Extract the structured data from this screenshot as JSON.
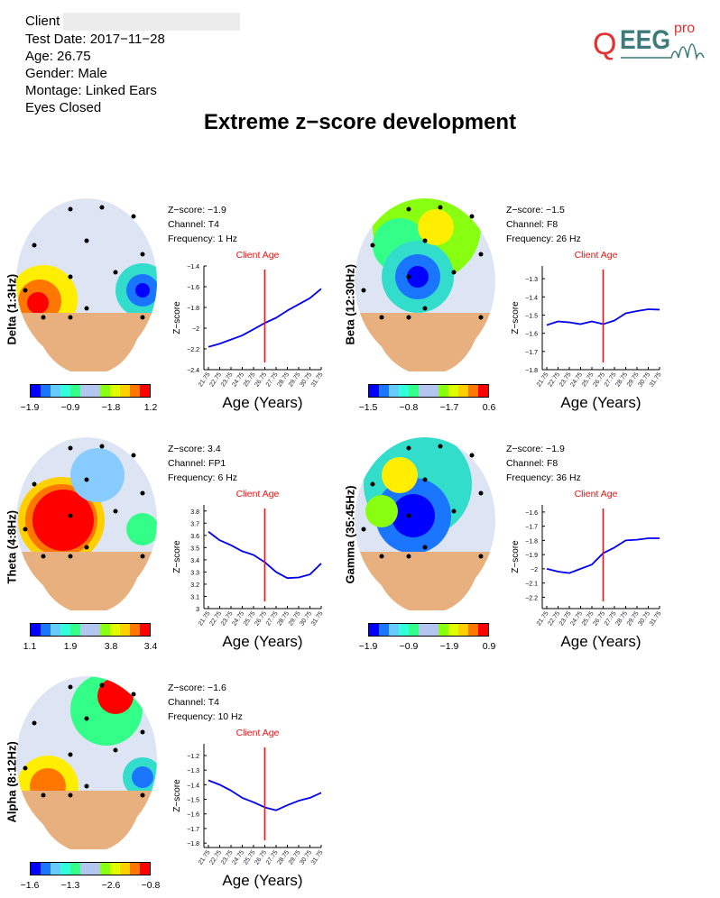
{
  "header": {
    "client_label": "Client",
    "test_date": "Test Date: 2017−11−28",
    "age": "Age: 26.75",
    "gender": "Gender: Male",
    "montage": "Montage: Linked Ears",
    "condition": "Eyes Closed"
  },
  "logo": {
    "text": "EEG",
    "sup": "pro",
    "q": "Q",
    "colors": {
      "main": "#3d7a7a",
      "accent": "#e53030"
    }
  },
  "title": "Extreme z−score development",
  "colorbar_colors": [
    "#0000ff",
    "#1a75ff",
    "#66ccff",
    "#33ffdd",
    "#33ff88",
    "#b3c6f0",
    "#b3c6f0",
    "#88ff11",
    "#ddff00",
    "#ffd000",
    "#ff7700",
    "#ff0000"
  ],
  "chart_data": [
    {
      "type": "line",
      "band": "Delta (1:3Hz)",
      "zscore": "Z−score: −1.9",
      "channel": "Channel: T4",
      "frequency": "Frequency: 1 Hz",
      "annotation": "Client Age",
      "client_age": 26.75,
      "xlabel": "Age (Years)",
      "ylabel": "Z−score",
      "x": [
        21.75,
        22.75,
        23.75,
        24.75,
        25.75,
        26.75,
        27.75,
        28.75,
        29.75,
        30.75,
        31.75
      ],
      "values": [
        -2.18,
        -2.15,
        -2.11,
        -2.07,
        -2.01,
        -1.95,
        -1.9,
        -1.83,
        -1.77,
        -1.71,
        -1.62
      ],
      "ylim": [
        -2.4,
        -1.4
      ],
      "yticks": [
        -2.4,
        -2.2,
        -2,
        -1.8,
        -1.6,
        -1.4
      ],
      "colorbar_labels": [
        "−1.9",
        "−0.9",
        "−1.8",
        "1.2"
      ],
      "line_color": "#0000ee",
      "marker_color": "#ee1111"
    },
    {
      "type": "line",
      "band": "Beta (12:30Hz)",
      "zscore": "Z−score: −1.5",
      "channel": "Channel: F8",
      "frequency": "Frequency: 26 Hz",
      "annotation": "Client Age",
      "client_age": 26.75,
      "xlabel": "Age (Years)",
      "ylabel": "Z−score",
      "x": [
        21.75,
        22.75,
        23.75,
        24.75,
        25.75,
        26.75,
        27.75,
        28.75,
        29.75,
        30.75,
        31.75
      ],
      "values": [
        -1.555,
        -1.535,
        -1.54,
        -1.55,
        -1.535,
        -1.55,
        -1.53,
        -1.49,
        -1.478,
        -1.468,
        -1.47
      ],
      "ylim": [
        -1.8,
        -1.23
      ],
      "yticks": [
        -1.8,
        -1.7,
        -1.6,
        -1.5,
        -1.4,
        -1.3
      ],
      "colorbar_labels": [
        "−1.5",
        "−0.8",
        "−1.7",
        "0.6"
      ],
      "line_color": "#0000ee",
      "marker_color": "#ee1111"
    },
    {
      "type": "line",
      "band": "Theta (4:8Hz)",
      "zscore": "Z−score: 3.4",
      "channel": "Channel: FP1",
      "frequency": "Frequency: 6 Hz",
      "annotation": "Client Age",
      "client_age": 26.75,
      "xlabel": "Age (Years)",
      "ylabel": "Z−score",
      "x": [
        21.75,
        22.75,
        23.75,
        24.75,
        25.75,
        26.75,
        27.75,
        28.75,
        29.75,
        30.75,
        31.75
      ],
      "values": [
        3.63,
        3.56,
        3.52,
        3.47,
        3.44,
        3.38,
        3.3,
        3.25,
        3.255,
        3.28,
        3.37
      ],
      "ylim": [
        3,
        3.85
      ],
      "yticks": [
        3,
        3.1,
        3.2,
        3.3,
        3.4,
        3.5,
        3.6,
        3.7,
        3.8
      ],
      "colorbar_labels": [
        "1.1",
        "1.9",
        "3.8",
        "3.4"
      ],
      "line_color": "#0000ee",
      "marker_color": "#ee1111"
    },
    {
      "type": "line",
      "band": "Gamma (35:45Hz)",
      "zscore": "Z−score: −1.9",
      "channel": "Channel: F8",
      "frequency": "Frequency: 36 Hz",
      "annotation": "Client Age",
      "client_age": 26.75,
      "xlabel": "Age (Years)",
      "ylabel": "Z−score",
      "x": [
        21.75,
        22.75,
        23.75,
        24.75,
        25.75,
        26.75,
        27.75,
        28.75,
        29.75,
        30.75,
        31.75
      ],
      "values": [
        -2.0,
        -2.02,
        -2.03,
        -2.0,
        -1.97,
        -1.89,
        -1.85,
        -1.8,
        -1.795,
        -1.785,
        -1.785
      ],
      "ylim": [
        -2.28,
        -1.55
      ],
      "yticks": [
        -2.2,
        -2.1,
        -2,
        -1.9,
        -1.8,
        -1.7,
        -1.6
      ],
      "colorbar_labels": [
        "−1.9",
        "−0.9",
        "−1.9",
        "0.9"
      ],
      "line_color": "#0000ee",
      "marker_color": "#ee1111"
    },
    {
      "type": "line",
      "band": "Alpha (8:12Hz)",
      "zscore": "Z−score: −1.6",
      "channel": "Channel: T4",
      "frequency": "Frequency: 10 Hz",
      "annotation": "Client Age",
      "client_age": 26.75,
      "xlabel": "Age (Years)",
      "ylabel": "Z−score",
      "x": [
        21.75,
        22.75,
        23.75,
        24.75,
        25.75,
        26.75,
        27.75,
        28.75,
        29.75,
        30.75,
        31.75
      ],
      "values": [
        -1.37,
        -1.4,
        -1.44,
        -1.49,
        -1.52,
        -1.555,
        -1.575,
        -1.54,
        -1.51,
        -1.49,
        -1.455
      ],
      "ylim": [
        -1.83,
        -1.12
      ],
      "yticks": [
        -1.8,
        -1.7,
        -1.6,
        -1.5,
        -1.4,
        -1.3,
        -1.2
      ],
      "colorbar_labels": [
        "−1.6",
        "−1.3",
        "−2.6",
        "−0.8"
      ],
      "line_color": "#0000ee",
      "marker_color": "#ee1111"
    }
  ]
}
